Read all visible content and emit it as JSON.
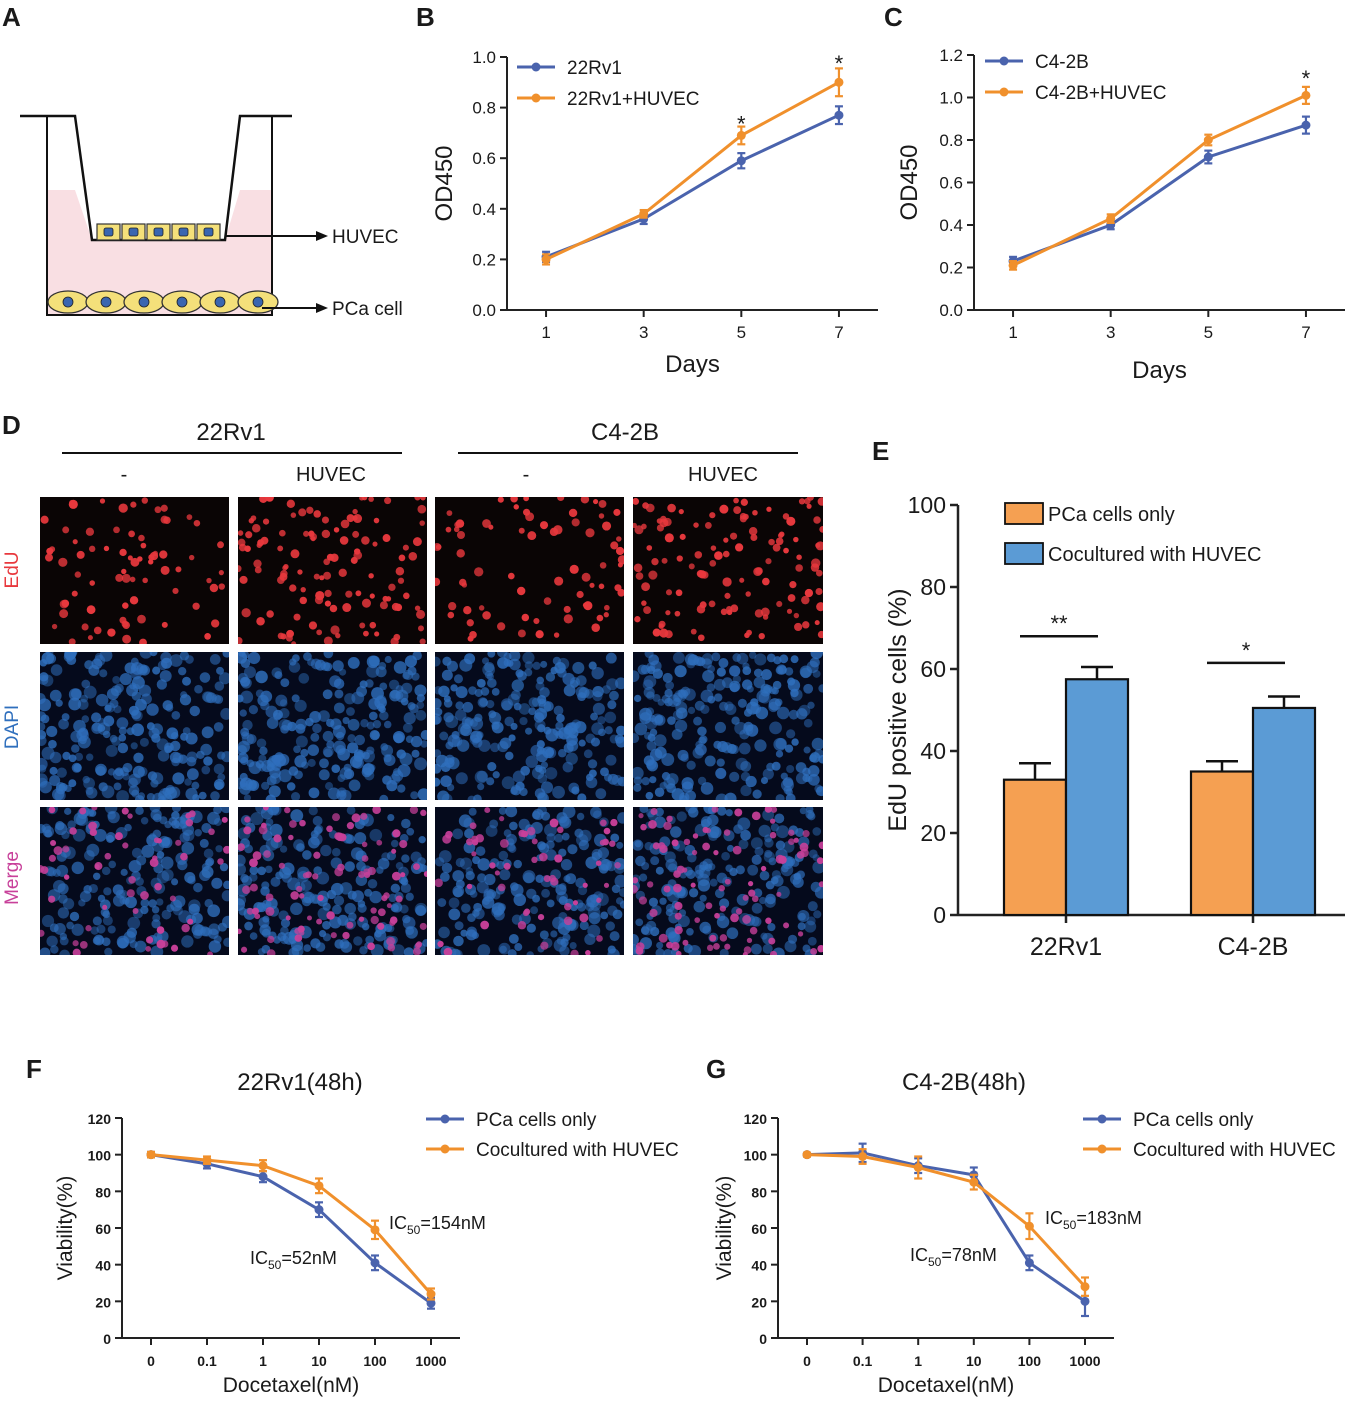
{
  "colors": {
    "blue": "#4a63ad",
    "orange": "#f0902c",
    "bar_orange": "#f5a052",
    "bar_blue": "#5b9bd5",
    "edu_red": "#e8383d",
    "dapi_blue": "#2f6fbd",
    "merge_pink": "#c8409a",
    "well_pink": "#f9dfe3",
    "cell_yellow": "#f4e07a",
    "nucleus_blue": "#3a66b0"
  },
  "panel_a": {
    "letter": "A",
    "huvec_label": "HUVEC",
    "pca_label": "PCa cell"
  },
  "panel_d": {
    "letter": "D",
    "group1": "22Rv1",
    "group2": "C4-2B",
    "sub_control": "-",
    "sub_huvec": "HUVEC",
    "row_edu": "EdU",
    "row_dapi": "DAPI",
    "row_merge": "Merge"
  },
  "chart_data": [
    {
      "id": "B",
      "type": "line",
      "letter": "B",
      "title": "",
      "xlabel": "Days",
      "ylabel": "OD450",
      "x": [
        1,
        3,
        5,
        7
      ],
      "xlim": [
        0.2,
        7.8
      ],
      "ylim": [
        0,
        1.0
      ],
      "yticks": [
        0.0,
        0.2,
        0.4,
        0.6,
        0.8,
        1.0
      ],
      "ytick_labels": [
        "0.0",
        "0.2",
        "0.4",
        "0.6",
        "0.8",
        "1.0"
      ],
      "xtick_labels": [
        "1",
        "3",
        "5",
        "7"
      ],
      "series": [
        {
          "name": "22Rv1",
          "color": "#4a63ad",
          "values": [
            0.21,
            0.36,
            0.59,
            0.77
          ],
          "errors": [
            0.02,
            0.02,
            0.03,
            0.035
          ]
        },
        {
          "name": "22Rv1+HUVEC",
          "color": "#f0902c",
          "values": [
            0.2,
            0.38,
            0.69,
            0.9
          ],
          "errors": [
            0.02,
            0.015,
            0.035,
            0.055
          ]
        }
      ],
      "annotations": [
        {
          "x": 5,
          "y": 0.76,
          "text": "*"
        },
        {
          "x": 7,
          "y": 1.0,
          "text": "*"
        }
      ],
      "legend": "top-left"
    },
    {
      "id": "C",
      "type": "line",
      "letter": "C",
      "title": "",
      "xlabel": "Days",
      "ylabel": "OD450",
      "x": [
        1,
        3,
        5,
        7
      ],
      "xlim": [
        0.2,
        7.8
      ],
      "ylim": [
        0,
        1.2
      ],
      "yticks": [
        0.0,
        0.2,
        0.4,
        0.6,
        0.8,
        1.0,
        1.2
      ],
      "ytick_labels": [
        "0.0",
        "0.2",
        "0.4",
        "0.6",
        "0.8",
        "1.0",
        "1.2"
      ],
      "xtick_labels": [
        "1",
        "3",
        "5",
        "7"
      ],
      "series": [
        {
          "name": "C4-2B",
          "color": "#4a63ad",
          "values": [
            0.23,
            0.4,
            0.72,
            0.87
          ],
          "errors": [
            0.02,
            0.02,
            0.03,
            0.04
          ]
        },
        {
          "name": "C4-2B+HUVEC",
          "color": "#f0902c",
          "values": [
            0.21,
            0.43,
            0.8,
            1.01
          ],
          "errors": [
            0.02,
            0.02,
            0.025,
            0.04
          ]
        }
      ],
      "annotations": [
        {
          "x": 7,
          "y": 1.12,
          "text": "*"
        }
      ],
      "legend": "top-left"
    },
    {
      "id": "E",
      "type": "bar",
      "letter": "E",
      "title": "",
      "xlabel": "",
      "ylabel": "EdU positive cells (%)",
      "categories": [
        "22Rv1",
        "C4-2B"
      ],
      "ylim": [
        0,
        100
      ],
      "yticks": [
        0,
        20,
        40,
        60,
        80,
        100
      ],
      "ytick_labels": [
        "0",
        "20",
        "40",
        "60",
        "80",
        "100"
      ],
      "series": [
        {
          "name": "PCa cells only",
          "color": "#f5a052",
          "values": [
            33,
            35
          ],
          "errors": [
            4,
            2.5
          ]
        },
        {
          "name": "Cocultured with HUVEC",
          "color": "#5b9bd5",
          "values": [
            57.5,
            50.5
          ],
          "errors": [
            3,
            2.8
          ]
        }
      ],
      "annotations": [
        {
          "category": "22Rv1",
          "y": 68,
          "text": "**"
        },
        {
          "category": "C4-2B",
          "y": 61.5,
          "text": "*"
        }
      ],
      "legend": "top"
    },
    {
      "id": "F",
      "type": "line",
      "letter": "F",
      "title": "22Rv1(48h)",
      "xlabel": "Docetaxel(nM)",
      "ylabel": "Viability(%)",
      "x": [
        "0",
        "0.1",
        "1",
        "10",
        "100",
        "1000"
      ],
      "xtick_labels": [
        "0",
        "0.1",
        "1",
        "10",
        "100",
        "1000"
      ],
      "ylim": [
        0,
        120
      ],
      "yticks": [
        0,
        20,
        40,
        60,
        80,
        100,
        120
      ],
      "ytick_labels": [
        "0",
        "20",
        "40",
        "60",
        "80",
        "100",
        "120"
      ],
      "series": [
        {
          "name": "PCa cells only",
          "color": "#4a63ad",
          "values": [
            100,
            95,
            88,
            70,
            41,
            19
          ],
          "errors": [
            1.5,
            2.5,
            3,
            4,
            4,
            3
          ]
        },
        {
          "name": "Cocultured with HUVEC",
          "color": "#f0902c",
          "values": [
            100,
            97,
            94,
            83,
            59,
            24
          ],
          "errors": [
            1.5,
            2,
            3,
            4,
            5,
            3
          ]
        }
      ],
      "ic50": [
        {
          "prefix": "IC",
          "sub": "50",
          "suffix": "=52nM"
        },
        {
          "prefix": "IC",
          "sub": "50",
          "suffix": "=154nM"
        }
      ],
      "legend": "top-right"
    },
    {
      "id": "G",
      "type": "line",
      "letter": "G",
      "title": "C4-2B(48h)",
      "xlabel": "Docetaxel(nM)",
      "ylabel": "Viability(%)",
      "x": [
        "0",
        "0.1",
        "1",
        "10",
        "100",
        "1000"
      ],
      "xtick_labels": [
        "0",
        "0.1",
        "1",
        "10",
        "100",
        "1000"
      ],
      "ylim": [
        0,
        120
      ],
      "yticks": [
        0,
        20,
        40,
        60,
        80,
        100,
        120
      ],
      "ytick_labels": [
        "0",
        "20",
        "40",
        "60",
        "80",
        "100",
        "120"
      ],
      "series": [
        {
          "name": "PCa cells only",
          "color": "#4a63ad",
          "values": [
            100,
            101,
            94,
            89,
            41,
            20
          ],
          "errors": [
            1,
            5,
            4,
            4,
            4,
            8
          ]
        },
        {
          "name": "Cocultured with HUVEC",
          "color": "#f0902c",
          "values": [
            100,
            99,
            93,
            85,
            61,
            28
          ],
          "errors": [
            1,
            4,
            6,
            4,
            7,
            5
          ]
        }
      ],
      "ic50": [
        {
          "prefix": "IC",
          "sub": "50",
          "suffix": "=78nM"
        },
        {
          "prefix": "IC",
          "sub": "50",
          "suffix": "=183nM"
        }
      ],
      "legend": "top-right"
    }
  ]
}
